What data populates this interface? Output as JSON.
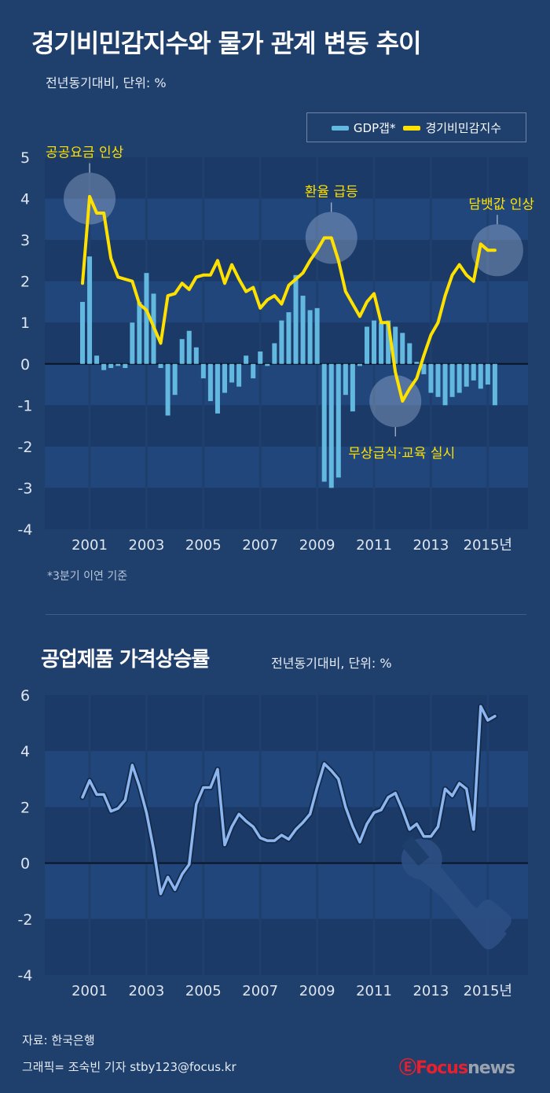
{
  "header": {
    "title": "경기비민감지수와 물가 관계 변동 추이",
    "subtitle": "전년동기대비, 단위: %"
  },
  "legend": {
    "items": [
      {
        "label": "GDP갭*",
        "color": "#62b8de"
      },
      {
        "label": "경기비민감지수",
        "color": "#ffe100"
      }
    ]
  },
  "footnote": "*3분기 이연 기준",
  "section2": {
    "title": "공업제품 가격상승률",
    "subtitle": "전년동기대비, 단위: %"
  },
  "footer": {
    "source": "자료: 한국은행",
    "credit": "그래픽= 조숙빈 기자 stby123@focus.kr",
    "logo_a": "Focus",
    "logo_b": "news",
    "logo_icon": "focus-swirl-icon"
  },
  "colors": {
    "background": "#1f3f6d",
    "bar": "#62b8de",
    "line_top": "#ffe100",
    "line_bottom": "#8cb6f0"
  },
  "chart_data": [
    {
      "type": "bar+line",
      "xlabel_suffix": "년",
      "x_tick_labels": [
        "2001",
        "2003",
        "2005",
        "2007",
        "2009",
        "2011",
        "2013",
        "2015"
      ],
      "y_tick_labels": [
        "5",
        "4",
        "3",
        "2",
        "1",
        "0",
        "-1",
        "-2",
        "-3",
        "-4"
      ],
      "ylim": [
        -4,
        5
      ],
      "grid": "banded",
      "legend_position": "top-right",
      "x_start": "2000Q4",
      "x_step": "quarter",
      "series": [
        {
          "name": "GDP갭*",
          "kind": "bar",
          "values": [
            1.5,
            2.6,
            0.2,
            -0.15,
            -0.1,
            -0.05,
            -0.1,
            1.0,
            1.5,
            2.2,
            1.7,
            -0.1,
            -1.25,
            -0.75,
            0.6,
            0.8,
            0.4,
            -0.35,
            -0.9,
            -1.2,
            -0.7,
            -0.45,
            -0.55,
            0.2,
            -0.35,
            0.3,
            -0.05,
            0.5,
            1.05,
            1.25,
            2.15,
            1.65,
            1.3,
            1.35,
            -2.85,
            -3.0,
            -2.75,
            -0.75,
            -1.15,
            -0.05,
            0.9,
            1.05,
            1.0,
            1.05,
            0.9,
            0.75,
            0.5,
            0.05,
            -0.25,
            -0.7,
            -0.8,
            -1.0,
            -0.8,
            -0.7,
            -0.55,
            -0.4,
            -0.6,
            -0.5,
            -1.0
          ]
        },
        {
          "name": "경기비민감지수",
          "kind": "line",
          "values": [
            1.95,
            4.05,
            3.65,
            3.65,
            2.55,
            2.1,
            2.05,
            2.0,
            1.45,
            1.3,
            0.9,
            0.5,
            1.65,
            1.7,
            1.95,
            1.8,
            2.1,
            2.15,
            2.15,
            2.5,
            1.95,
            2.4,
            2.05,
            1.75,
            1.85,
            1.35,
            1.55,
            1.65,
            1.45,
            1.9,
            2.05,
            2.2,
            2.5,
            2.75,
            3.05,
            3.05,
            2.5,
            1.75,
            1.45,
            1.15,
            1.5,
            1.7,
            1.0,
            1.0,
            -0.2,
            -0.9,
            -0.6,
            -0.35,
            0.2,
            0.7,
            1.0,
            1.65,
            2.15,
            2.4,
            2.15,
            2.0,
            2.9,
            2.75,
            2.75
          ]
        }
      ],
      "annotations": [
        {
          "label": "공공요금 인상",
          "index": 1,
          "value": 4.0
        },
        {
          "label": "환율 급등",
          "index": 35,
          "value": 3.05
        },
        {
          "label": "무상급식·교육 실시",
          "index": 44,
          "value": -0.9
        },
        {
          "label": "담뱃값 인상",
          "index": 58,
          "value": 2.75
        }
      ]
    },
    {
      "type": "line",
      "xlabel_suffix": "년",
      "x_tick_labels": [
        "2001",
        "2003",
        "2005",
        "2007",
        "2009",
        "2011",
        "2013",
        "2015"
      ],
      "y_tick_labels": [
        "6",
        "4",
        "2",
        "0",
        "-2",
        "-4"
      ],
      "ylim": [
        -4,
        6
      ],
      "grid": "banded",
      "x_start": "2000Q4",
      "x_step": "quarter",
      "decoration_icon": "wrench-screwdriver-icon",
      "series": [
        {
          "kind": "line",
          "values": [
            2.35,
            2.95,
            2.45,
            2.45,
            1.85,
            1.95,
            2.25,
            3.5,
            2.75,
            1.8,
            0.5,
            -1.1,
            -0.5,
            -0.95,
            -0.4,
            -0.05,
            2.1,
            2.7,
            2.7,
            3.35,
            0.65,
            1.3,
            1.75,
            1.5,
            1.3,
            0.9,
            0.8,
            0.8,
            1.0,
            0.85,
            1.2,
            1.45,
            1.75,
            2.7,
            3.55,
            3.3,
            3.0,
            2.0,
            1.3,
            0.75,
            1.4,
            1.8,
            1.9,
            2.35,
            2.5,
            1.9,
            1.2,
            1.4,
            0.95,
            0.95,
            1.3,
            2.65,
            2.4,
            2.85,
            2.65,
            1.2,
            5.6,
            5.1,
            5.25
          ]
        }
      ]
    }
  ]
}
